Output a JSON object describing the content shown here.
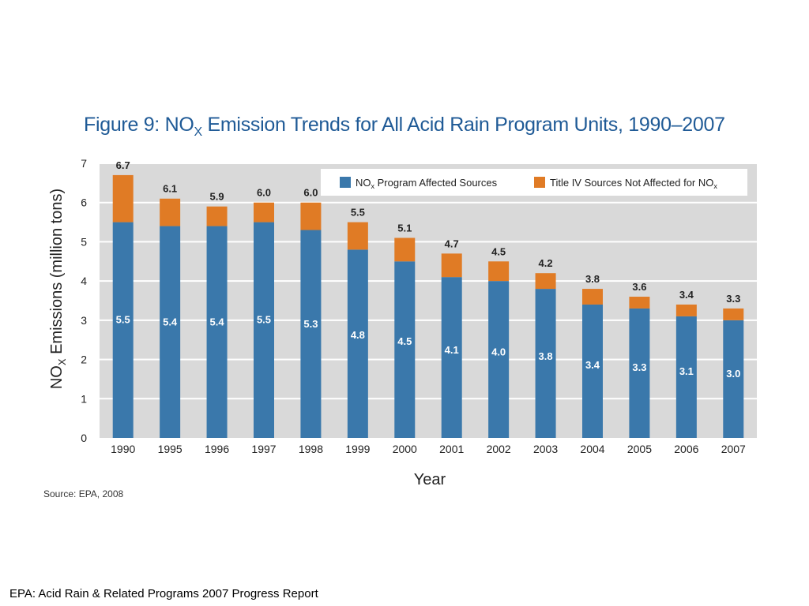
{
  "figure": {
    "title_prefix": "Figure 9: NO",
    "title_sub": "X",
    "title_suffix": " Emission Trends for All Acid Rain Program Units, 1990–2007"
  },
  "source_note": "Source: EPA, 2008",
  "footer_caption": "EPA: Acid Rain & Related Programs 2007 Progress Report",
  "colors": {
    "plot_background": "#d9d9d9",
    "gridline": "#ffffff",
    "affected": "#3a78ab",
    "not_affected": "#e07b25"
  },
  "chart_data": {
    "type": "bar",
    "stacked": true,
    "categories": [
      "1990",
      "1995",
      "1996",
      "1997",
      "1998",
      "1999",
      "2000",
      "2001",
      "2002",
      "2003",
      "2004",
      "2005",
      "2006",
      "2007"
    ],
    "series": [
      {
        "name_prefix": "NO",
        "name_sub": "x",
        "name_suffix": " Program Affected Sources",
        "color": "#3a78ab",
        "values": [
          5.5,
          5.4,
          5.4,
          5.5,
          5.3,
          4.8,
          4.5,
          4.1,
          4.0,
          3.8,
          3.4,
          3.3,
          3.1,
          3.0
        ],
        "labels": [
          "5.5",
          "5.4",
          "5.4",
          "5.5",
          "5.3",
          "4.8",
          "4.5",
          "4.1",
          "4.0",
          "3.8",
          "3.4",
          "3.3",
          "3.1",
          "3.0"
        ]
      },
      {
        "name_prefix": "Title IV Sources Not Affected for NO",
        "name_sub": "x",
        "name_suffix": "",
        "color": "#e07b25",
        "values": [
          1.2,
          0.7,
          0.5,
          0.5,
          0.7,
          0.7,
          0.6,
          0.6,
          0.5,
          0.4,
          0.4,
          0.3,
          0.3,
          0.3
        ]
      }
    ],
    "totals": [
      6.7,
      6.1,
      5.9,
      6.0,
      6.0,
      5.5,
      5.1,
      4.7,
      4.5,
      4.2,
      3.8,
      3.6,
      3.4,
      3.3
    ],
    "total_labels": [
      "6.7",
      "6.1",
      "5.9",
      "6.0",
      "6.0",
      "5.5",
      "5.1",
      "4.7",
      "4.5",
      "4.2",
      "3.8",
      "3.6",
      "3.4",
      "3.3"
    ],
    "xlabel": "Year",
    "ylabel_prefix": "NO",
    "ylabel_sub": "X",
    "ylabel_suffix": " Emissions (million tons)",
    "ylim": [
      0,
      7
    ],
    "yticks": [
      0,
      1,
      2,
      3,
      4,
      5,
      6,
      7
    ],
    "grid": true,
    "legend_position": "top-right"
  }
}
